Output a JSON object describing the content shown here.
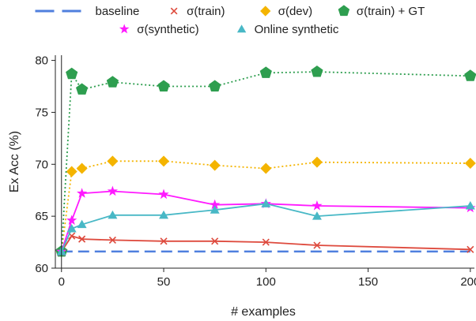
{
  "chart_data": {
    "type": "line",
    "xlabel": "# examples",
    "ylabel": "Ex Acc (%)",
    "xlim": [
      -3,
      202
    ],
    "ylim": [
      60,
      80.5
    ],
    "xticks": [
      0,
      50,
      100,
      150,
      200
    ],
    "yticks": [
      60,
      65,
      70,
      75,
      80
    ],
    "grid": false,
    "legend_position": "top",
    "series": [
      {
        "name": "baseline",
        "color": "#4f7fde",
        "style": "dashed",
        "marker": "none",
        "x": [
          0,
          200
        ],
        "y": [
          61.6,
          61.6
        ]
      },
      {
        "name": "σ(train)",
        "color": "#de4a3d",
        "style": "solid",
        "marker": "x",
        "x": [
          0,
          5,
          10,
          25,
          50,
          75,
          100,
          125,
          200
        ],
        "y": [
          61.6,
          63.1,
          62.8,
          62.7,
          62.6,
          62.6,
          62.5,
          62.2,
          61.8
        ]
      },
      {
        "name": "σ(dev)",
        "color": "#f4b400",
        "style": "dotted",
        "marker": "diamond",
        "x": [
          0,
          5,
          10,
          25,
          50,
          75,
          100,
          125,
          200
        ],
        "y": [
          61.6,
          69.3,
          69.6,
          70.3,
          70.3,
          69.9,
          69.6,
          70.2,
          70.1
        ]
      },
      {
        "name": "σ(train) + GT",
        "color": "#2e9e4f",
        "style": "dotted",
        "marker": "pentagon",
        "x": [
          0,
          5,
          10,
          25,
          50,
          75,
          100,
          125,
          200
        ],
        "y": [
          61.6,
          78.7,
          77.2,
          77.9,
          77.5,
          77.5,
          78.8,
          78.9,
          78.5
        ]
      },
      {
        "name": "σ(synthetic)",
        "color": "#ff1aff",
        "style": "solid",
        "marker": "star",
        "x": [
          0,
          5,
          10,
          25,
          50,
          75,
          100,
          125,
          200
        ],
        "y": [
          61.6,
          64.6,
          67.2,
          67.4,
          67.1,
          66.1,
          66.2,
          66.0,
          65.8
        ]
      },
      {
        "name": "Online synthetic",
        "color": "#48b8c6",
        "style": "solid",
        "marker": "triangle",
        "x": [
          0,
          5,
          10,
          25,
          50,
          75,
          100,
          125,
          200
        ],
        "y": [
          61.6,
          63.8,
          64.2,
          65.1,
          65.1,
          65.6,
          66.2,
          65.0,
          66.0
        ]
      }
    ]
  }
}
